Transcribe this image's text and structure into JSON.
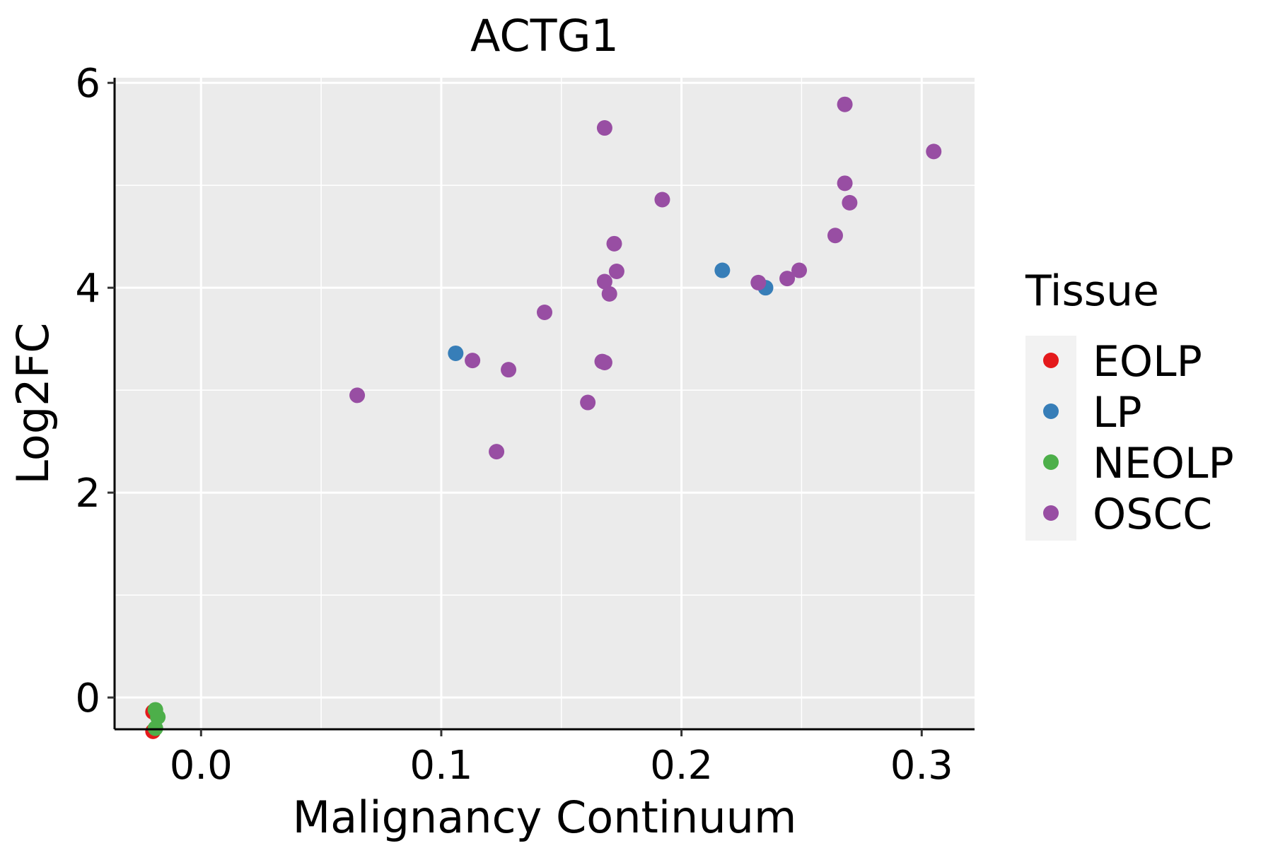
{
  "chart_data": {
    "type": "scatter",
    "title": "ACTG1",
    "xlabel": "Malignancy Continuum",
    "ylabel": "Log2FC",
    "xlim": [
      -0.036,
      0.322
    ],
    "ylim": [
      -0.31,
      6.05
    ],
    "xticks": [
      0.0,
      0.1,
      0.2,
      0.3
    ],
    "xtick_labels": [
      "0.0",
      "0.1",
      "0.2",
      "0.3"
    ],
    "yticks": [
      0,
      2,
      4,
      6
    ],
    "ytick_labels": [
      "0",
      "2",
      "4",
      "6"
    ],
    "grid": true,
    "legend_title": "Tissue",
    "legend_position": "right",
    "series": [
      {
        "name": "EOLP",
        "color": "#E41A1C",
        "points": [
          [
            -0.02,
            -0.14
          ],
          [
            -0.02,
            -0.33
          ]
        ]
      },
      {
        "name": "LP",
        "color": "#377EB8",
        "points": [
          [
            0.106,
            3.36
          ],
          [
            0.217,
            4.17
          ],
          [
            0.235,
            4.0
          ]
        ]
      },
      {
        "name": "NEOLP",
        "color": "#4DAF4A",
        "points": [
          [
            -0.019,
            -0.12
          ],
          [
            -0.018,
            -0.19
          ],
          [
            -0.019,
            -0.3
          ]
        ]
      },
      {
        "name": "OSCC",
        "color": "#984EA3",
        "points": [
          [
            0.065,
            2.95
          ],
          [
            0.113,
            3.29
          ],
          [
            0.123,
            2.4
          ],
          [
            0.128,
            3.2
          ],
          [
            0.143,
            3.76
          ],
          [
            0.161,
            2.88
          ],
          [
            0.167,
            3.28
          ],
          [
            0.168,
            3.27
          ],
          [
            0.168,
            5.56
          ],
          [
            0.168,
            4.06
          ],
          [
            0.17,
            3.94
          ],
          [
            0.172,
            4.43
          ],
          [
            0.173,
            4.16
          ],
          [
            0.192,
            4.86
          ],
          [
            0.232,
            4.05
          ],
          [
            0.244,
            4.09
          ],
          [
            0.249,
            4.17
          ],
          [
            0.264,
            4.51
          ],
          [
            0.268,
            5.02
          ],
          [
            0.268,
            5.79
          ],
          [
            0.27,
            4.83
          ],
          [
            0.305,
            5.33
          ]
        ]
      }
    ]
  }
}
